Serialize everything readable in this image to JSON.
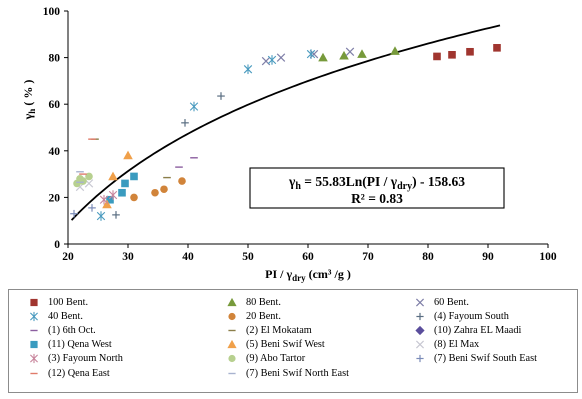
{
  "chart_data": {
    "type": "scatter",
    "xlabel": {
      "main": "PI / γ",
      "sub": "dry",
      "rest": "  (cm³ /g )"
    },
    "ylabel": {
      "main": "γ",
      "sub": "h",
      "rest": " ( % )"
    },
    "xlim": [
      20,
      100
    ],
    "ylim": [
      0,
      100
    ],
    "xticks": [
      20,
      30,
      40,
      50,
      60,
      70,
      80,
      90,
      100
    ],
    "yticks": [
      0,
      20,
      40,
      60,
      80,
      100
    ],
    "grid": false,
    "legend_position": "bottom",
    "equation": {
      "lhs_main": "γ",
      "lhs_sub": "h",
      "rhs": " = 55.83Ln(PI / γ",
      "rhs_sub": "dry",
      "rhs_end": ") - 158.63"
    },
    "r_squared": "R² = 0.83",
    "fit": {
      "a": 55.83,
      "b": -158.63,
      "x_range": [
        20.6,
        92
      ]
    },
    "series": [
      {
        "name": "100 Bent.",
        "marker": "square",
        "color": "#a0352f",
        "points": [
          [
            81.5,
            80.5
          ],
          [
            84,
            81.2
          ],
          [
            87,
            82.5
          ],
          [
            91.5,
            84.2
          ]
        ]
      },
      {
        "name": "80 Bent.",
        "marker": "triangle",
        "color": "#779a3b",
        "points": [
          [
            62.5,
            80
          ],
          [
            66,
            80.8
          ],
          [
            69,
            81.5
          ],
          [
            74.5,
            82.8
          ]
        ]
      },
      {
        "name": "60 Bent.",
        "marker": "x",
        "color": "#7f7fa8",
        "points": [
          [
            53,
            78.5
          ],
          [
            55.5,
            80
          ],
          [
            61,
            81.5
          ],
          [
            67,
            82.5
          ]
        ]
      },
      {
        "name": "40 Bent.",
        "marker": "asterisk",
        "color": "#4a9bbf",
        "points": [
          [
            25.5,
            12
          ],
          [
            41,
            59
          ],
          [
            50,
            75
          ],
          [
            54,
            79
          ],
          [
            60.5,
            81.5
          ]
        ]
      },
      {
        "name": "20 Bent.",
        "marker": "circle",
        "color": "#d1843a",
        "points": [
          [
            31,
            20
          ],
          [
            34.5,
            22
          ],
          [
            36,
            23.5
          ],
          [
            39,
            27
          ]
        ]
      },
      {
        "name": "(4) Fayoum  South",
        "marker": "plus",
        "color": "#5a6e82",
        "points": [
          [
            39.5,
            52
          ],
          [
            45.5,
            63.5
          ],
          [
            28,
            12.5
          ]
        ]
      },
      {
        "name": "(1) 6th Oct.",
        "marker": "dash",
        "color": "#8c5fa0",
        "points": [
          [
            38.5,
            33
          ],
          [
            41,
            37
          ]
        ]
      },
      {
        "name": "(2) El Mokatam",
        "marker": "dash",
        "color": "#8b7e4a",
        "points": [
          [
            36.5,
            28.5
          ],
          [
            24.5,
            45
          ]
        ]
      },
      {
        "name": "(10) Zahra EL Maadi",
        "marker": "diamond",
        "color": "#5a4d9c",
        "points": []
      },
      {
        "name": "(11) Qena West",
        "marker": "square",
        "color": "#3a9bbf",
        "points": [
          [
            27,
            19
          ],
          [
            29,
            22
          ],
          [
            29.5,
            26
          ],
          [
            31,
            29
          ]
        ]
      },
      {
        "name": "(5) Beni Swif  West",
        "marker": "triangle",
        "color": "#f0a04a",
        "points": [
          [
            26.5,
            17
          ],
          [
            27.5,
            29
          ],
          [
            30,
            38
          ]
        ]
      },
      {
        "name": "(8) El Max",
        "marker": "x",
        "color": "#c8c8d2",
        "points": [
          [
            22,
            24.5
          ],
          [
            23.5,
            26
          ]
        ]
      },
      {
        "name": "(3) Fayoum North",
        "marker": "asterisk",
        "color": "#c8849c",
        "points": [
          [
            26,
            19
          ],
          [
            27.5,
            21
          ]
        ]
      },
      {
        "name": "(9) Abo Tartor",
        "marker": "circle",
        "color": "#b7d08f",
        "points": [
          [
            21.5,
            26
          ],
          [
            22.5,
            27
          ],
          [
            23.5,
            29
          ],
          [
            22,
            28
          ]
        ]
      },
      {
        "name": "(7) Beni Swif  South East",
        "marker": "plus",
        "color": "#7a8bb8",
        "points": [
          [
            21,
            13
          ],
          [
            24,
            15.5
          ]
        ]
      },
      {
        "name": "(12) Qena  East",
        "marker": "dash",
        "color": "#e07b6a",
        "points": [
          [
            24,
            45
          ],
          [
            22.5,
            30
          ]
        ]
      },
      {
        "name": "(7) Beni Swif North East",
        "marker": "dash",
        "color": "#a8b3cf",
        "points": [
          [
            22,
            31
          ],
          [
            22,
            26.5
          ]
        ]
      }
    ]
  }
}
